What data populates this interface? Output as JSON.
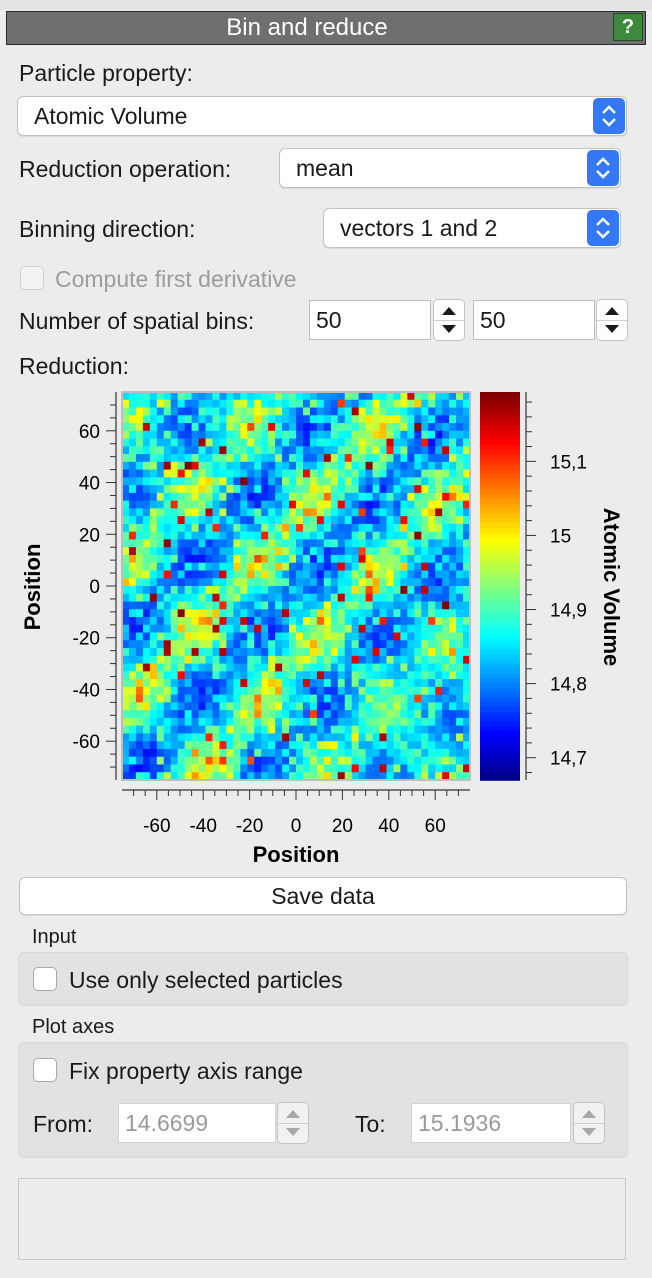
{
  "panel": {
    "title": "Bin and reduce",
    "help_label": "?"
  },
  "form": {
    "particle_property_label": "Particle property:",
    "particle_property_value": "Atomic Volume",
    "reduction_label": "Reduction operation:",
    "reduction_value": "mean",
    "binning_label": "Binning direction:",
    "binning_value": "vectors 1 and 2",
    "derivative_label": "Compute first derivative",
    "derivative_checked": false,
    "bins_label": "Number of spatial bins:",
    "bins_x": "50",
    "bins_y": "50",
    "reduction_plot_label": "Reduction:"
  },
  "actions": {
    "save_label": "Save data"
  },
  "input_group": {
    "title": "Input",
    "selected_only_label": "Use only selected particles",
    "selected_only_checked": false
  },
  "axes_group": {
    "title": "Plot axes",
    "fix_range_label": "Fix property axis range",
    "fix_range_checked": false,
    "from_label": "From:",
    "from_value": "14.6699",
    "to_label": "To:",
    "to_value": "15.1936"
  },
  "colors": {
    "accent": "#3478f6",
    "help": "#3d8a3d",
    "header": "#6f6f6f"
  },
  "chart_data": {
    "type": "heatmap",
    "xlabel": "Position",
    "ylabel": "Position",
    "colorbar_label": "Atomic Volume",
    "x_ticks": [
      "-60",
      "-40",
      "-20",
      "0",
      "20",
      "40",
      "60"
    ],
    "y_ticks": [
      "60",
      "40",
      "20",
      "0",
      "-20",
      "-40",
      "-60"
    ],
    "colorbar_ticks": [
      "15,1",
      "15",
      "14,9",
      "14,8",
      "14,7"
    ],
    "xlim": [
      -75,
      75
    ],
    "ylim": [
      -75,
      75
    ],
    "value_range": [
      14.6699,
      15.1936
    ],
    "bins": [
      50,
      50
    ],
    "colormap": "jet"
  }
}
